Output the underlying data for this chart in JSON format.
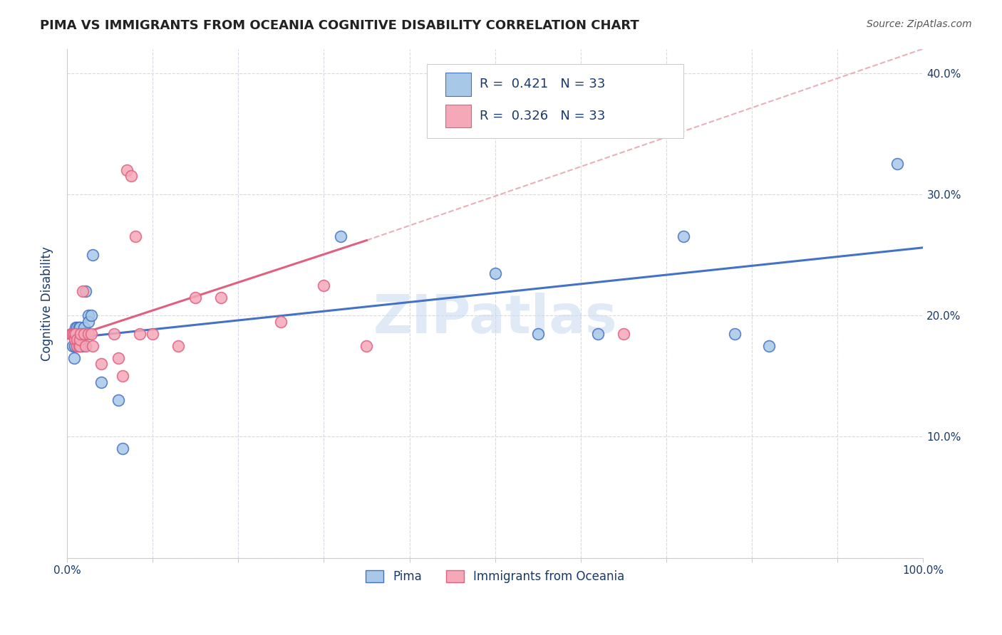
{
  "title": "PIMA VS IMMIGRANTS FROM OCEANIA COGNITIVE DISABILITY CORRELATION CHART",
  "source": "Source: ZipAtlas.com",
  "ylabel": "Cognitive Disability",
  "xlim": [
    0,
    1.0
  ],
  "ylim": [
    0.0,
    0.42
  ],
  "xticks": [
    0.0,
    0.1,
    0.2,
    0.3,
    0.4,
    0.5,
    0.6,
    0.7,
    0.8,
    0.9,
    1.0
  ],
  "xticklabels": [
    "0.0%",
    "",
    "",
    "",
    "",
    "",
    "",
    "",
    "",
    "",
    "100.0%"
  ],
  "yticks": [
    0.0,
    0.1,
    0.2,
    0.3,
    0.4
  ],
  "yticklabels_right": [
    "",
    "10.0%",
    "20.0%",
    "30.0%",
    "40.0%"
  ],
  "legend_labels": [
    "Pima",
    "Immigrants from Oceania"
  ],
  "blue_color": "#a8c8e8",
  "pink_color": "#f4a8b8",
  "blue_line_color": "#4472c4",
  "pink_line_color": "#e06080",
  "dashed_line_color": "#e8b0b8",
  "watermark": "ZIPatlas",
  "watermark_color": "#c8d8f0",
  "grid_color": "#d8d8e8",
  "text_color": "#1a3a6b",
  "title_color": "#222222",
  "blue_scatter_x": [
    0.005,
    0.007,
    0.008,
    0.009,
    0.01,
    0.01,
    0.012,
    0.012,
    0.013,
    0.014,
    0.015,
    0.015,
    0.016,
    0.018,
    0.018,
    0.02,
    0.02,
    0.022,
    0.025,
    0.025,
    0.028,
    0.03,
    0.04,
    0.06,
    0.065,
    0.32,
    0.5,
    0.55,
    0.62,
    0.72,
    0.78,
    0.82,
    0.97
  ],
  "blue_scatter_y": [
    0.185,
    0.175,
    0.165,
    0.175,
    0.185,
    0.19,
    0.19,
    0.175,
    0.185,
    0.19,
    0.175,
    0.19,
    0.185,
    0.185,
    0.175,
    0.19,
    0.185,
    0.22,
    0.2,
    0.195,
    0.2,
    0.25,
    0.145,
    0.13,
    0.09,
    0.265,
    0.235,
    0.185,
    0.185,
    0.265,
    0.185,
    0.175,
    0.325
  ],
  "pink_scatter_x": [
    0.005,
    0.007,
    0.008,
    0.009,
    0.01,
    0.012,
    0.012,
    0.014,
    0.015,
    0.015,
    0.016,
    0.018,
    0.02,
    0.022,
    0.025,
    0.028,
    0.03,
    0.04,
    0.055,
    0.06,
    0.065,
    0.07,
    0.075,
    0.08,
    0.085,
    0.1,
    0.13,
    0.15,
    0.18,
    0.25,
    0.3,
    0.35,
    0.65
  ],
  "pink_scatter_y": [
    0.185,
    0.185,
    0.185,
    0.18,
    0.185,
    0.175,
    0.18,
    0.175,
    0.175,
    0.18,
    0.185,
    0.22,
    0.185,
    0.175,
    0.185,
    0.185,
    0.175,
    0.16,
    0.185,
    0.165,
    0.15,
    0.32,
    0.315,
    0.265,
    0.185,
    0.185,
    0.175,
    0.215,
    0.215,
    0.195,
    0.225,
    0.175,
    0.185
  ],
  "blue_trend_x": [
    0.0,
    1.0
  ],
  "blue_trend_y": [
    0.181,
    0.256
  ],
  "pink_trend_x": [
    0.0,
    0.35
  ],
  "pink_trend_y": [
    0.181,
    0.262
  ],
  "dash_trend_x": [
    0.35,
    1.0
  ],
  "dash_trend_y": [
    0.262,
    0.42
  ]
}
